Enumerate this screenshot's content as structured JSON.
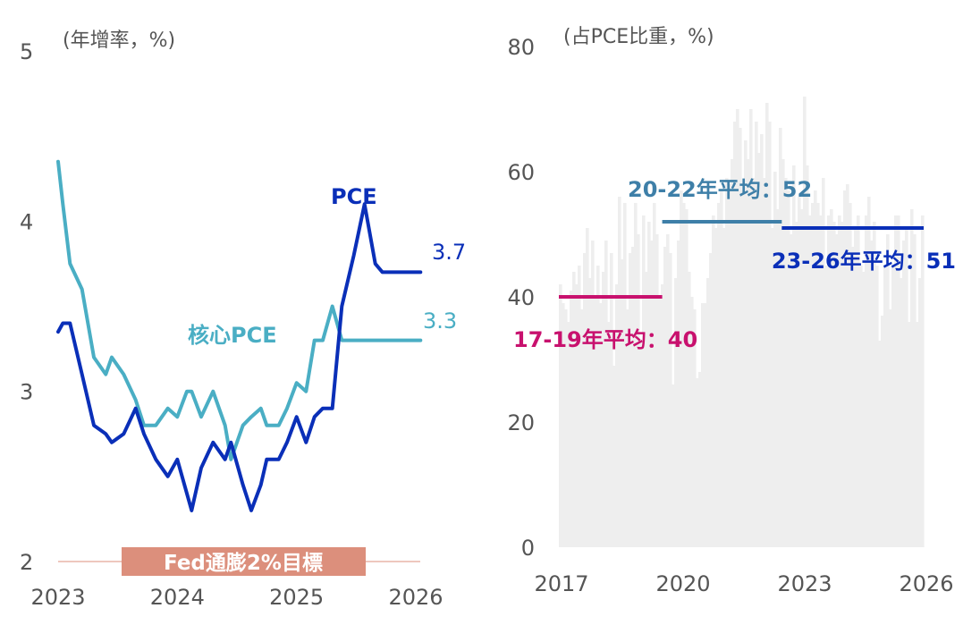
{
  "chart_data": [
    {
      "type": "line",
      "unit_label": "(年增率，%)",
      "x_ticks": [
        "2023",
        "2024",
        "2025",
        "2026"
      ],
      "y_ticks": [
        "2",
        "3",
        "4",
        "5"
      ],
      "xlim": [
        2023.0,
        2026.0
      ],
      "ylim": [
        2,
        5
      ],
      "grid": false,
      "series": [
        {
          "name": "PCE",
          "color": "#0a2fb8",
          "end_label": "3.7",
          "x": [
            2023.0,
            2023.04,
            2023.1,
            2023.2,
            2023.3,
            2023.4,
            2023.45,
            2023.55,
            2023.65,
            2023.72,
            2023.82,
            2023.92,
            2024.0,
            2024.08,
            2024.12,
            2024.2,
            2024.3,
            2024.4,
            2024.45,
            2024.55,
            2024.62,
            2024.7,
            2024.75,
            2024.85,
            2024.92,
            2025.0,
            2025.08,
            2025.15,
            2025.22,
            2025.3,
            2025.38,
            2025.48,
            2025.57,
            2025.66,
            2025.72,
            2025.78,
            2025.84,
            2025.92,
            2025.98,
            2026.04,
            2026.1
          ],
          "values": [
            3.35,
            3.4,
            3.4,
            3.1,
            2.8,
            2.75,
            2.7,
            2.75,
            2.9,
            2.75,
            2.6,
            2.5,
            2.6,
            2.4,
            2.3,
            2.55,
            2.7,
            2.6,
            2.7,
            2.45,
            2.3,
            2.45,
            2.6,
            2.6,
            2.7,
            2.85,
            2.7,
            2.85,
            2.9,
            2.9,
            3.5,
            3.8,
            4.1,
            3.75,
            3.7,
            3.7,
            3.7,
            3.7,
            3.7,
            3.7,
            3.7
          ]
        },
        {
          "name": "核心PCE",
          "color": "#4aaec4",
          "end_label": "3.3",
          "x": [
            2023.0,
            2023.04,
            2023.1,
            2023.2,
            2023.3,
            2023.4,
            2023.45,
            2023.55,
            2023.65,
            2023.72,
            2023.82,
            2023.92,
            2024.0,
            2024.08,
            2024.12,
            2024.2,
            2024.3,
            2024.4,
            2024.45,
            2024.55,
            2024.62,
            2024.7,
            2024.75,
            2024.85,
            2024.92,
            2025.0,
            2025.08,
            2025.15,
            2025.22,
            2025.3,
            2025.38,
            2025.48,
            2025.57,
            2025.66,
            2025.72,
            2025.78,
            2025.84,
            2025.92,
            2025.98,
            2026.04,
            2026.1
          ],
          "values": [
            4.35,
            4.1,
            3.75,
            3.6,
            3.2,
            3.1,
            3.2,
            3.1,
            2.95,
            2.8,
            2.8,
            2.9,
            2.85,
            3.0,
            3.0,
            2.85,
            3.0,
            2.8,
            2.6,
            2.8,
            2.85,
            2.9,
            2.8,
            2.8,
            2.9,
            3.05,
            3.0,
            3.3,
            3.3,
            3.5,
            3.3,
            3.3,
            3.3,
            3.3,
            3.3,
            3.3,
            3.3,
            3.3,
            3.3,
            3.3,
            3.3
          ]
        }
      ],
      "target_band": {
        "label": "Fed通膨2%目標",
        "value": 2,
        "color": "#dc8f7c"
      }
    },
    {
      "type": "bar",
      "unit_label": "(占PCE比重，%)",
      "x_ticks": [
        "2017",
        "2020",
        "2023",
        "2026"
      ],
      "y_ticks": [
        "0",
        "20",
        "40",
        "60",
        "80"
      ],
      "xlim": [
        2017.0,
        2026.0
      ],
      "ylim": [
        0,
        80
      ],
      "grid": false,
      "bar_color": "#eeeeee",
      "bars": [
        42,
        39,
        38,
        36,
        41,
        44,
        42,
        45,
        38,
        47,
        51,
        43,
        49,
        40,
        45,
        39,
        44,
        49,
        36,
        47,
        29,
        42,
        56,
        46,
        55,
        38,
        47,
        48,
        55,
        50,
        33,
        53,
        44,
        52,
        49,
        55,
        50,
        40,
        42,
        48,
        50,
        47,
        26,
        43,
        49,
        57,
        55,
        54,
        44,
        40,
        38,
        27,
        28,
        39,
        39,
        43,
        47,
        53,
        51,
        55,
        57,
        51,
        59,
        58,
        62,
        68,
        70,
        67,
        57,
        65,
        62,
        70,
        59,
        68,
        63,
        66,
        59,
        71,
        68,
        51,
        60,
        54,
        67,
        62,
        59,
        57,
        50,
        61,
        52,
        56,
        54,
        72,
        61,
        53,
        55,
        57,
        55,
        53,
        59,
        45,
        53,
        54,
        52,
        50,
        53,
        52,
        57,
        58,
        55,
        48,
        51,
        53,
        45,
        44,
        53,
        56,
        49,
        52,
        45,
        33,
        37,
        45,
        50,
        38,
        45,
        53,
        53,
        43,
        49,
        51,
        36,
        54,
        50,
        36,
        43,
        53
      ],
      "series": [
        {
          "name": "17-19年平均：40",
          "value": 40,
          "x_range": [
            2017.0,
            2019.55
          ],
          "color": "#c8116e"
        },
        {
          "name": "20-22年平均：52",
          "value": 52,
          "x_range": [
            2019.55,
            2022.5
          ],
          "color": "#3e7fa8"
        },
        {
          "name": "23-26年平均：51",
          "value": 51,
          "x_range": [
            2022.5,
            2026.0
          ],
          "color": "#0a2fb8"
        }
      ]
    }
  ]
}
